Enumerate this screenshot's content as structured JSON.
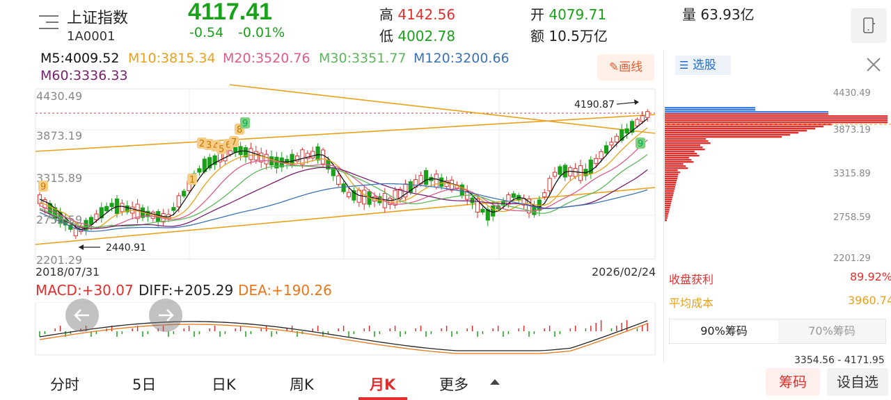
{
  "header": {
    "name": "上证指数",
    "code": "1A0001",
    "price": "4117.41",
    "change": "-0.54",
    "change_pct": "-0.01%",
    "high_label": "高",
    "high": "4142.56",
    "low_label": "低",
    "low": "4002.78",
    "open_label": "开",
    "open": "4079.71",
    "amount_label": "额",
    "amount": "10.5万亿",
    "volume_label": "量",
    "volume": "63.93亿"
  },
  "ma": {
    "m5": "M5:4009.52",
    "m10": "M10:3815.34",
    "m20": "M20:3520.76",
    "m30": "M30:3351.77",
    "m120": "M120:3200.66",
    "m60": "M60:3336.33"
  },
  "toolbar": {
    "draw_label": "画线",
    "stock_pick_label": "选股"
  },
  "chart": {
    "y_ticks": [
      "4430.49",
      "3873.19",
      "3315.89",
      "2758.59",
      "2201.29"
    ],
    "start_date": "2018/07/31",
    "end_date": "2026/02/24",
    "high_annotation": "4190.87",
    "low_annotation": "2440.91",
    "markers": [
      "9",
      "9",
      "9",
      "1",
      "2",
      "3",
      "4",
      "5",
      "6",
      "7",
      "8",
      "9"
    ]
  },
  "chart_data": [
    {
      "type": "candlestick",
      "title": "",
      "x_range": [
        "2018/07/31",
        "2026/02/24"
      ],
      "y_ticks": [
        4430.49,
        3873.19,
        3315.89,
        2758.59,
        2201.29
      ],
      "ylim": [
        2201.29,
        4430.49
      ],
      "series": [
        {
          "name": "M5",
          "value": 4009.52,
          "color": "#111111"
        },
        {
          "name": "M10",
          "value": 3815.34,
          "color": "#e8a11a"
        },
        {
          "name": "M20",
          "value": 3520.76,
          "color": "#e05a8a"
        },
        {
          "name": "M30",
          "value": 3351.77,
          "color": "#5bb85b"
        },
        {
          "name": "M120",
          "value": 3200.66,
          "color": "#3b72b5"
        },
        {
          "name": "M60",
          "value": 3336.33,
          "color": "#7a1f6e"
        }
      ],
      "annotations": [
        {
          "label": "4190.87",
          "kind": "high"
        },
        {
          "label": "2440.91",
          "kind": "low"
        }
      ]
    },
    {
      "type": "bar",
      "title": "",
      "series": [
        {
          "name": "MACD",
          "value": 30.07,
          "color": "#e0302e"
        },
        {
          "name": "DIFF",
          "value": 205.29,
          "color": "#222222"
        },
        {
          "name": "DEA",
          "value": 190.26,
          "color": "#e8761a"
        }
      ]
    }
  ],
  "macd": {
    "macd": "MACD:+30.07",
    "diff": "DIFF:+205.29",
    "dea": "DEA:+190.26"
  },
  "chip": {
    "y_ticks": [
      "4430.49",
      "3873.19",
      "3315.89",
      "2758.59",
      "2201.29"
    ],
    "profit_label": "收盘获利",
    "profit_value": "89.92%",
    "avg_cost_label": "平均成本",
    "avg_cost_value": "3960.74",
    "tab_90": "90%筹码",
    "tab_70": "70%筹码",
    "range": "3354.56 - 4171.95"
  },
  "bottom_tabs": [
    "分时",
    "5日",
    "日K",
    "周K",
    "月K",
    "更多"
  ],
  "bottom_buttons": {
    "chip": "筹码",
    "watchlist": "设自选"
  }
}
